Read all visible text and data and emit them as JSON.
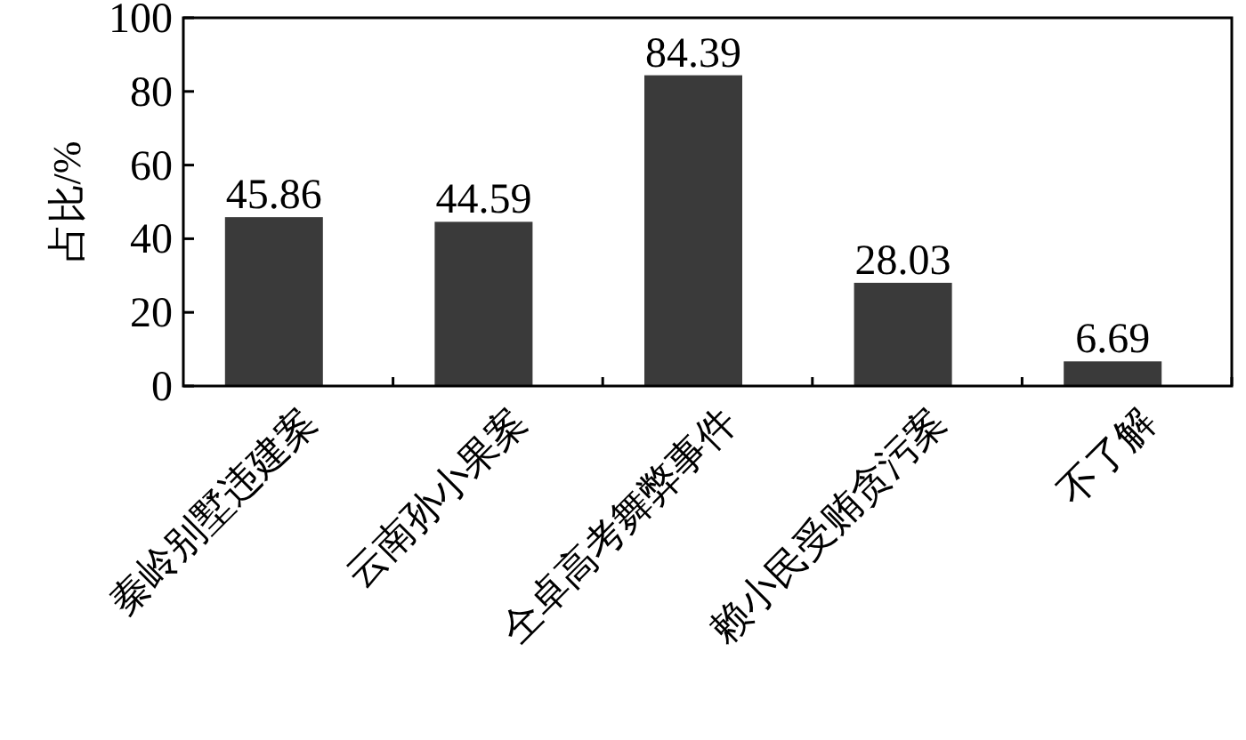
{
  "chart_data": {
    "type": "bar",
    "ylabel": "占比/%",
    "categories": [
      "秦岭别墅违建案",
      "云南孙小果案",
      "仝卓高考舞弊事件",
      "赖小民受贿贪污案",
      "不了解"
    ],
    "values": [
      45.86,
      44.59,
      84.39,
      28.03,
      6.69
    ],
    "color": "#3a3a3a",
    "ylim": [
      0,
      100
    ],
    "yticks": [
      0,
      20,
      40,
      60,
      80,
      100
    ],
    "data_labels": true
  }
}
